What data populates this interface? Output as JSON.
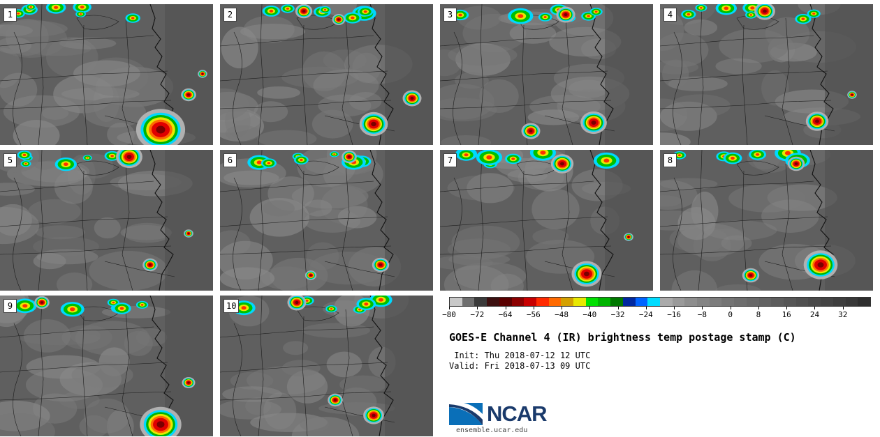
{
  "panels": [
    {
      "label": "1"
    },
    {
      "label": "2"
    },
    {
      "label": "3"
    },
    {
      "label": "4"
    },
    {
      "label": "5"
    },
    {
      "label": "6"
    },
    {
      "label": "7"
    },
    {
      "label": "8"
    },
    {
      "label": "9"
    },
    {
      "label": "10"
    }
  ],
  "colorbar": {
    "colors": [
      "#c8c8c8",
      "#6e6e6e",
      "#3a3a3a",
      "#3c1010",
      "#5a0000",
      "#8c0000",
      "#c80000",
      "#ff2a00",
      "#ff6a00",
      "#d4a000",
      "#e8e800",
      "#00e000",
      "#00b400",
      "#007800",
      "#0028a0",
      "#0064ff",
      "#00dcff",
      "#aaaaaa",
      "#9a9a9a",
      "#8e8e8e",
      "#848484",
      "#7c7c7c",
      "#747474",
      "#6e6e6e",
      "#686868",
      "#626262",
      "#5c5c5c",
      "#565656",
      "#505050",
      "#4a4a4a",
      "#444444",
      "#3e3e3e",
      "#383838",
      "#2e2e2e"
    ],
    "min": -80,
    "max": 40,
    "tick_labels": [
      "−80",
      "−72",
      "−64",
      "−56",
      "−48",
      "−40",
      "−32",
      "−24",
      "−16",
      "−8",
      "0",
      "8",
      "16",
      "24",
      "32"
    ],
    "tick_values": [
      -80,
      -72,
      -64,
      -56,
      -48,
      -40,
      -32,
      -24,
      -16,
      -8,
      0,
      8,
      16,
      24,
      32
    ]
  },
  "title": "GOES-E Channel 4 (IR) brightness temp postage stamp (C)",
  "init_line": " Init: Thu 2018-07-12 12 UTC",
  "valid_line": "Valid: Fri 2018-07-13 09 UTC",
  "logo": {
    "wordmark": "NCAR",
    "url": "ensemble.ucar.edu"
  }
}
